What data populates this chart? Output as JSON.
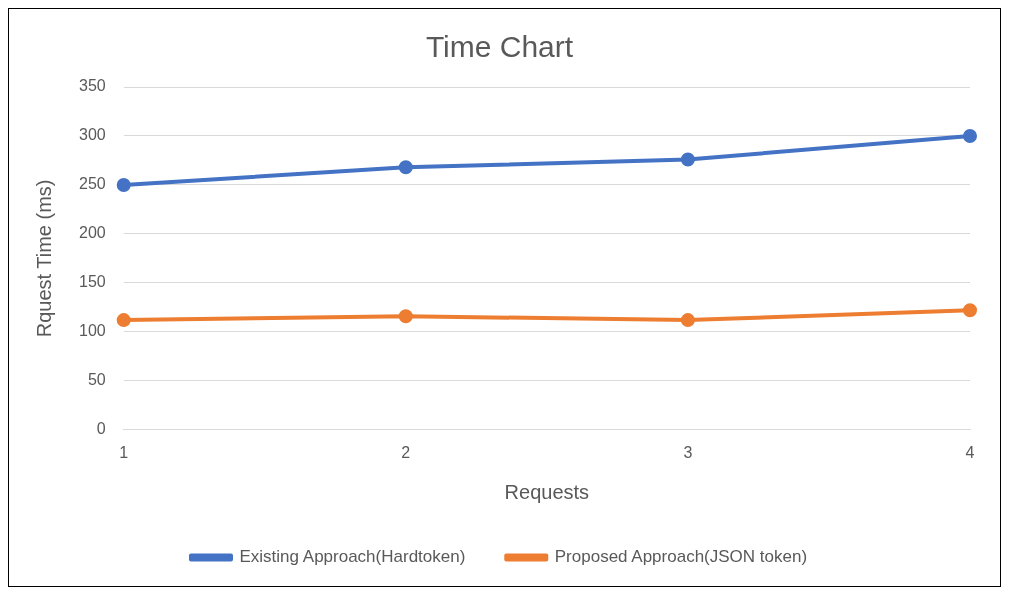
{
  "chart_data": {
    "type": "line",
    "title": "Time Chart",
    "xlabel": "Requests",
    "ylabel": "Rquest Time (ms)",
    "categories": [
      "1",
      "2",
      "3",
      "4"
    ],
    "series": [
      {
        "name": "Existing Approach(Hardtoken)",
        "color": "#4472c4",
        "values": [
          250,
          268,
          276,
          300
        ]
      },
      {
        "name": "Proposed Approach(JSON token)",
        "color": "#ed7d31",
        "values": [
          112,
          116,
          112,
          122
        ]
      }
    ],
    "ylim": [
      0,
      350
    ],
    "yticks": [
      0,
      50,
      100,
      150,
      200,
      250,
      300,
      350
    ],
    "grid": "y",
    "legend": "bottom",
    "marker": "circle",
    "line_style": "solid"
  }
}
